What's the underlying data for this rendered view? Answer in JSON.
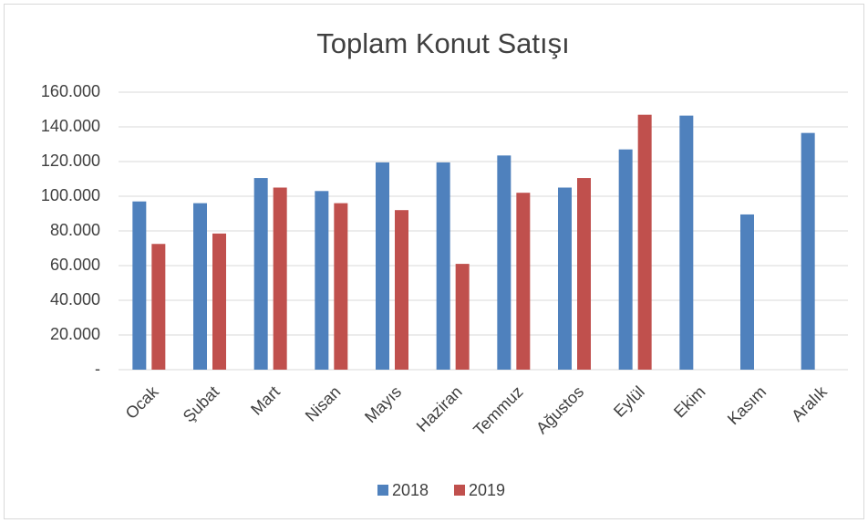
{
  "chart_data": {
    "type": "bar",
    "title": "Toplam Konut Satışı",
    "categories": [
      "Ocak",
      "Şubat",
      "Mart",
      "Nisan",
      "Mayıs",
      "Haziran",
      "Temmuz",
      "Ağustos",
      "Eylül",
      "Ekim",
      "Kasım",
      "Aralık"
    ],
    "series": [
      {
        "name": "2018",
        "color": "#4f81bd",
        "values": [
          97000,
          96000,
          110500,
          103000,
          119500,
          119500,
          123500,
          105000,
          127000,
          146500,
          89500,
          136500
        ]
      },
      {
        "name": "2019",
        "color": "#c0504d",
        "values": [
          72500,
          78500,
          105000,
          96000,
          92000,
          61000,
          102000,
          110500,
          147000,
          null,
          null,
          null
        ]
      }
    ],
    "ylim": [
      0,
      160000
    ],
    "yticks": [
      {
        "value": 0,
        "label": "-"
      },
      {
        "value": 20000,
        "label": "20.000"
      },
      {
        "value": 40000,
        "label": "40.000"
      },
      {
        "value": 60000,
        "label": "60.000"
      },
      {
        "value": 80000,
        "label": "80.000"
      },
      {
        "value": 100000,
        "label": "100.000"
      },
      {
        "value": 120000,
        "label": "120.000"
      },
      {
        "value": 140000,
        "label": "140.000"
      },
      {
        "value": 160000,
        "label": "160.000"
      }
    ],
    "grid": true,
    "legend": "bottom"
  }
}
